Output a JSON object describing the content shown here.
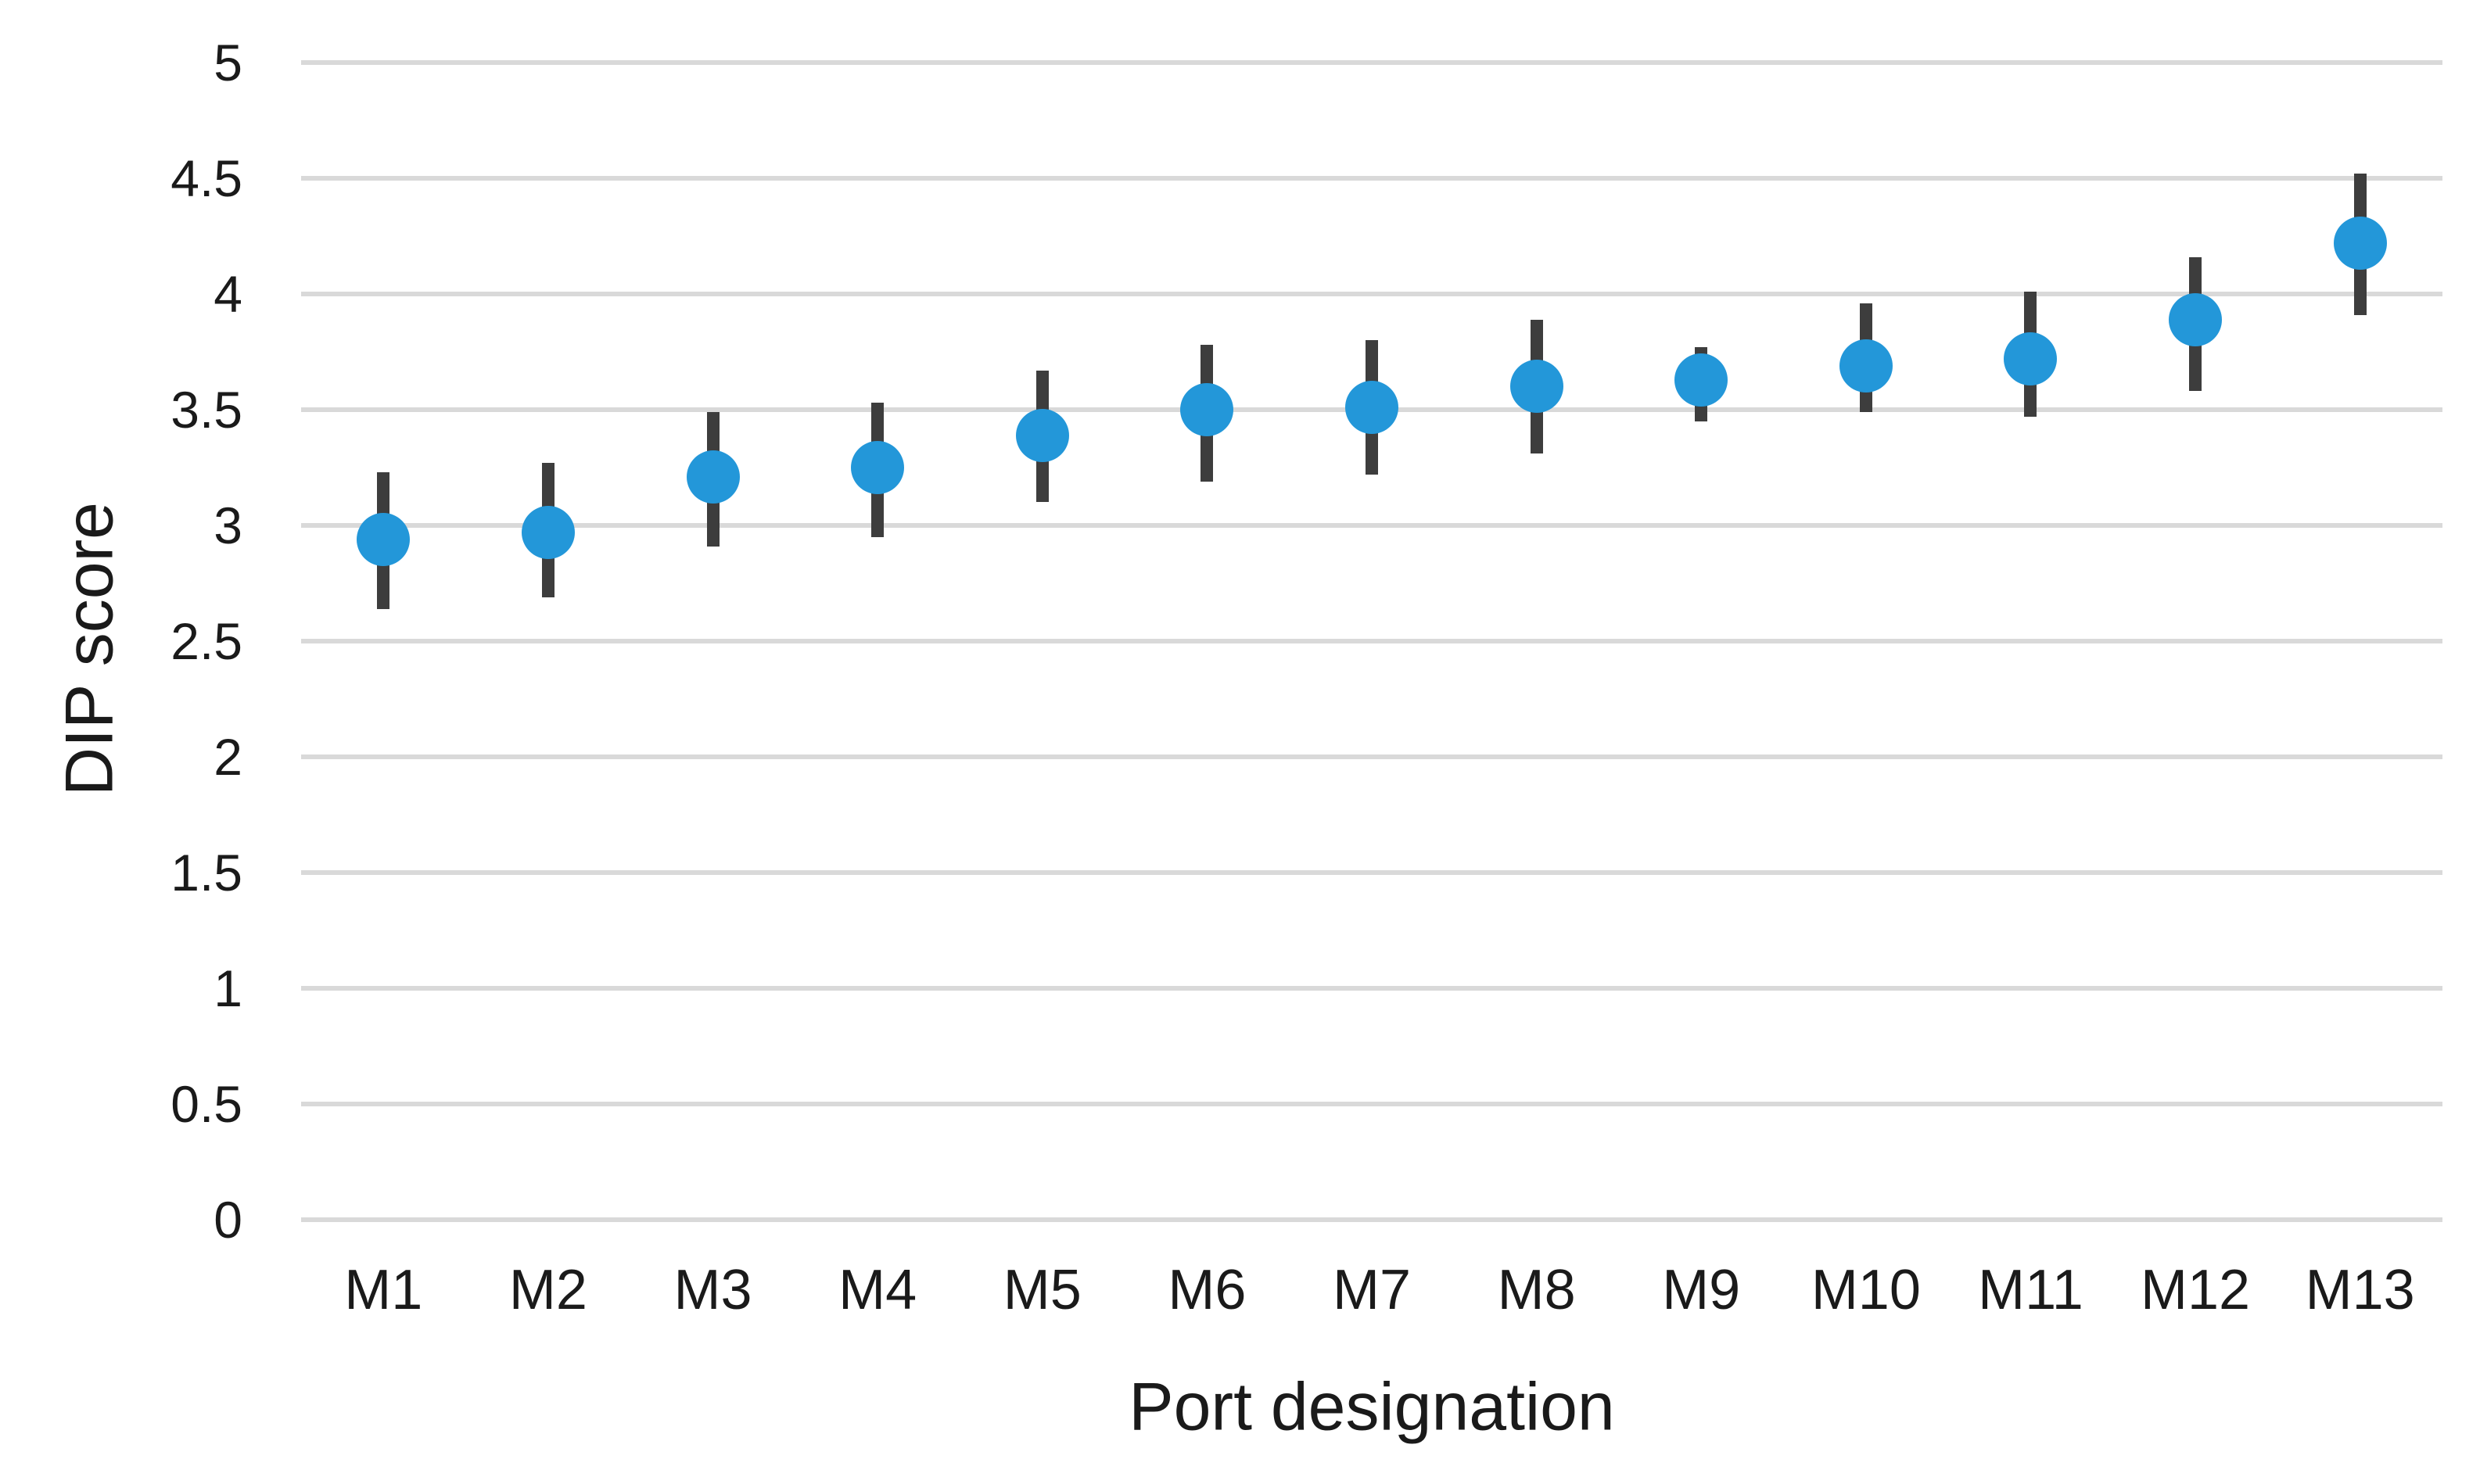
{
  "chart_data": {
    "type": "scatter",
    "title": "",
    "xlabel": "Port designation",
    "ylabel": "DIP score",
    "categories": [
      "M1",
      "M2",
      "M3",
      "M4",
      "M5",
      "M6",
      "M7",
      "M8",
      "M9",
      "M10",
      "M11",
      "M12",
      "M13"
    ],
    "series": [
      {
        "name": "DIP score",
        "values": [
          2.94,
          2.97,
          3.21,
          3.25,
          3.39,
          3.5,
          3.51,
          3.6,
          3.63,
          3.69,
          3.72,
          3.89,
          4.22
        ],
        "error_low": [
          2.64,
          2.69,
          2.91,
          2.95,
          3.1,
          3.19,
          3.22,
          3.31,
          3.45,
          3.49,
          3.47,
          3.58,
          3.91
        ],
        "error_high": [
          3.23,
          3.27,
          3.49,
          3.53,
          3.67,
          3.78,
          3.8,
          3.89,
          3.77,
          3.96,
          4.01,
          4.16,
          4.52
        ]
      }
    ],
    "y_ticks": [
      "0",
      "0.5",
      "1",
      "1.5",
      "2",
      "2.5",
      "3",
      "3.5",
      "4",
      "4.5",
      "5"
    ],
    "ylim": [
      0,
      5
    ],
    "grid": "horizontal-only",
    "legend": "none",
    "colors": {
      "marker": "#2397d9",
      "error_bar": "#3d3d3d",
      "gridline": "#d9d9d9",
      "text": "#1a1a1a",
      "background": "#ffffff"
    }
  }
}
